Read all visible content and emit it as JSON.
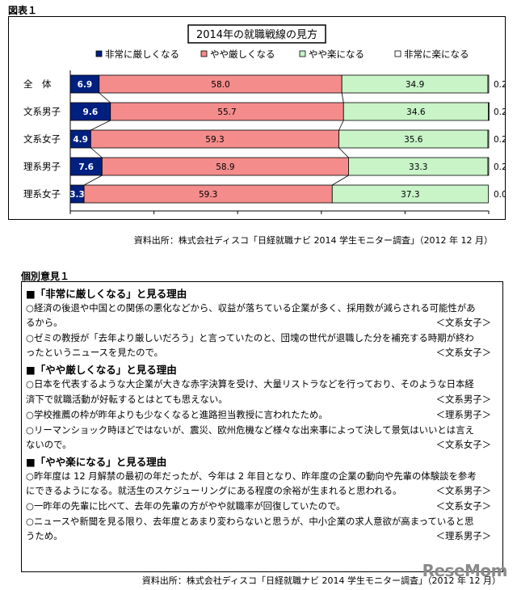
{
  "figure_label": "図表１",
  "source": "資料出所：株式会社ディスコ「日経就職ナビ 2014 学生モニター調査」（2012 年 12 月）",
  "logo": "ReseMom",
  "colors": {
    "very_hard": "#002080",
    "somewhat_hard": "#f48c8c",
    "somewhat_easy": "#c8f4c8",
    "very_easy": "#ffffff"
  },
  "chart_data": {
    "type": "bar",
    "orientation": "horizontal",
    "stacked": true,
    "percent": true,
    "title": "2014年の就職戦線の見方",
    "categories": [
      "全　体",
      "文系男子",
      "文系女子",
      "理系男子",
      "理系女子"
    ],
    "series": [
      {
        "name": "非常に厳しくなる",
        "values": [
          6.9,
          9.6,
          4.9,
          7.6,
          3.3
        ]
      },
      {
        "name": "やや厳しくなる",
        "values": [
          58.0,
          55.7,
          59.3,
          58.9,
          59.3
        ]
      },
      {
        "name": "やや楽になる",
        "values": [
          34.9,
          34.6,
          35.6,
          33.3,
          37.3
        ]
      },
      {
        "name": "非常に楽になる",
        "values": [
          0.2,
          0.2,
          0.2,
          0.2,
          0.0
        ]
      }
    ],
    "data_labels": [
      [
        "6.9",
        "58.0",
        "34.9",
        "0.2"
      ],
      [
        "9.6",
        "55.7",
        "34.6",
        "0.2"
      ],
      [
        "4.9",
        "59.3",
        "35.6",
        "0.2"
      ],
      [
        "7.6",
        "58.9",
        "33.3",
        "0.2"
      ],
      [
        "3.3",
        "59.3",
        "37.3",
        "0.0"
      ]
    ],
    "xlim": [
      0,
      100
    ],
    "xticks": [
      "0%",
      "20%",
      "40%",
      "60%",
      "80%",
      "100%"
    ],
    "legend": "top",
    "grid": false
  },
  "opinions": {
    "label": "個別意見１",
    "sections": [
      {
        "heading": "■「非常に厳しくなる」と見る理由",
        "items": [
          {
            "lines": [
              "○経済の後退や中国との関係の悪化などから、収益が落ちている企業が多く、採用数が減らされる可能性があ",
              "るから。"
            ],
            "tag": "＜文系女子＞"
          },
          {
            "lines": [
              "○ゼミの教授が「去年より厳しいだろう」と言っていたのと、団塊の世代が退職した分を補充する時期が終わ",
              "ったというニュースを見たので。"
            ],
            "tag": "＜文系女子＞"
          }
        ]
      },
      {
        "heading": "■「やや厳しくなる」と見る理由",
        "items": [
          {
            "lines": [
              "○日本を代表するような大企業が大きな赤字決算を受け、大量リストラなどを行っており、そのような日本経",
              "済下で就職活動が好転するとはとても思えない。"
            ],
            "tag": "＜文系男子＞"
          },
          {
            "lines": [
              "○学校推薦の枠が昨年よりも少なくなると進路担当教授に言われたため。"
            ],
            "tag": "＜理系男子＞"
          },
          {
            "lines": [
              "○リーマンショック時ほどではないが、震災、欧州危機など様々な出来事によって決して景気はいいとは言え",
              "ないので。"
            ],
            "tag": "＜文系女子＞"
          }
        ]
      },
      {
        "heading": "■「やや楽になる」と見る理由",
        "items": [
          {
            "lines": [
              "○昨年度は 12 月解禁の最初の年だったが、今年は 2 年目となり、昨年度の企業の動向や先輩の体験談を参考",
              "にできるようになる。就活生のスケジューリングにある程度の余裕が生まれると思われる。"
            ],
            "tag": "＜文系男子＞"
          },
          {
            "lines": [
              "○一昨年の先輩に比べて、去年の先輩の方がやや就職率が回復していたので。"
            ],
            "tag": "＜文系女子＞"
          },
          {
            "lines": [
              "○ニュースや新聞を見る限り、去年度とあまり変わらないと思うが、中小企業の求人意欲が高まっていると思",
              "うため。"
            ],
            "tag": "＜理系男子＞"
          }
        ]
      }
    ]
  }
}
